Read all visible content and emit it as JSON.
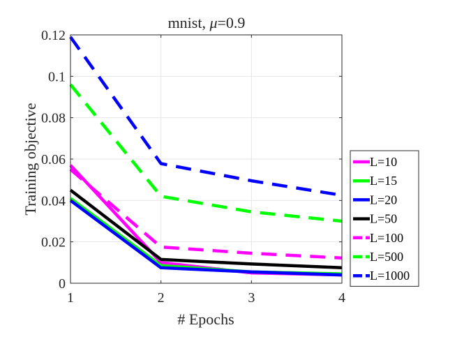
{
  "chart_data": {
    "type": "line",
    "title": "mnist, μ=0.9",
    "title_prefix": "mnist, ",
    "title_symbol": "μ",
    "title_suffix": "=0.9",
    "xlabel": "# Epochs",
    "ylabel": "Training objective",
    "xlim": [
      1,
      4
    ],
    "ylim": [
      0,
      0.12
    ],
    "xticks": [
      "1",
      "2",
      "3",
      "4"
    ],
    "yticks": [
      "0",
      "0.02",
      "0.04",
      "0.06",
      "0.08",
      "0.1",
      "0.12"
    ],
    "grid": true,
    "legend_position": "outside-right",
    "x": [
      1,
      2,
      3,
      4
    ],
    "series": [
      {
        "name": "L=10",
        "color": "#ff00ff",
        "style": "solid",
        "values": [
          0.057,
          0.01,
          0.005,
          0.004
        ]
      },
      {
        "name": "L=15",
        "color": "#00ff00",
        "style": "solid",
        "values": [
          0.041,
          0.0085,
          0.0055,
          0.0045
        ]
      },
      {
        "name": "L=20",
        "color": "#0000ff",
        "style": "solid",
        "values": [
          0.04,
          0.0075,
          0.0055,
          0.004
        ]
      },
      {
        "name": "L=50",
        "color": "#000000",
        "style": "solid",
        "values": [
          0.045,
          0.0115,
          0.0093,
          0.0075
        ]
      },
      {
        "name": "L=100",
        "color": "#ff00ff",
        "style": "dashed",
        "values": [
          0.055,
          0.0175,
          0.0145,
          0.0122
        ]
      },
      {
        "name": "L=500",
        "color": "#00ff00",
        "style": "dashed",
        "values": [
          0.096,
          0.042,
          0.0345,
          0.03
        ]
      },
      {
        "name": "L=1000",
        "color": "#0000ff",
        "style": "dashed",
        "values": [
          0.119,
          0.0578,
          0.0495,
          0.0425
        ]
      }
    ]
  }
}
